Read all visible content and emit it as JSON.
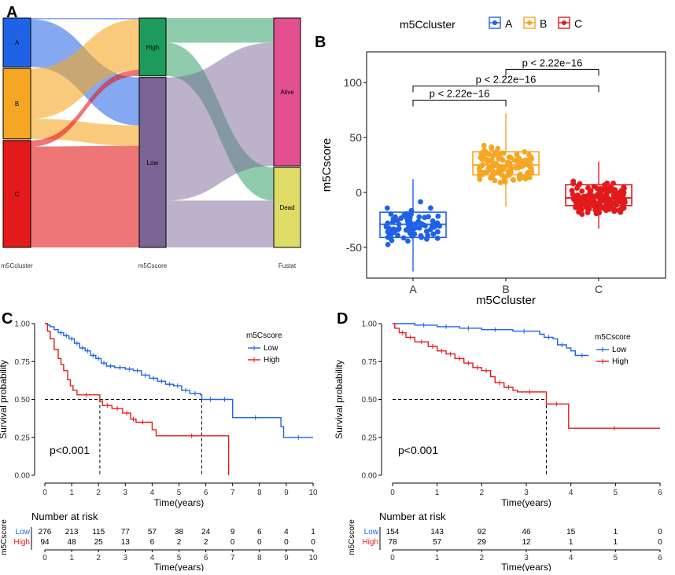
{
  "colors": {
    "A": "#1F62E6",
    "B": "#F5A623",
    "C": "#E31A1C",
    "high_node": "#1E9A5C",
    "low_node": "#7A6596",
    "alive_node": "#E2508F",
    "dead_node": "#DEDB67",
    "low_curve": "#1F62E6",
    "high_curve": "#E31A1C"
  },
  "panels": {
    "A": "A",
    "B": "B",
    "C": "C",
    "D": "D"
  },
  "chart_data": [
    {
      "panel": "A",
      "type": "sankey",
      "axis_labels": [
        "m5Ccluster",
        "m5Cscore",
        "Fustat"
      ],
      "nodes": [
        {
          "id": "A",
          "label": "A",
          "column": 0,
          "value": 80
        },
        {
          "id": "B",
          "label": "B",
          "column": 0,
          "value": 115
        },
        {
          "id": "C",
          "label": "C",
          "column": 0,
          "value": 175
        },
        {
          "id": "High",
          "label": "High",
          "column": 1,
          "value": 94
        },
        {
          "id": "Low",
          "label": "Low",
          "column": 1,
          "value": 276
        },
        {
          "id": "Alive",
          "label": "Alive",
          "column": 2,
          "value": 240
        },
        {
          "id": "Dead",
          "label": "Dead",
          "column": 2,
          "value": 130
        }
      ],
      "links": [
        {
          "source": "A",
          "target": "High",
          "value": 2
        },
        {
          "source": "A",
          "target": "Low",
          "value": 78
        },
        {
          "source": "B",
          "target": "High",
          "value": 82
        },
        {
          "source": "B",
          "target": "Low",
          "value": 33
        },
        {
          "source": "C",
          "target": "High",
          "value": 10
        },
        {
          "source": "C",
          "target": "Low",
          "value": 165
        },
        {
          "source": "High",
          "target": "Alive",
          "value": 40
        },
        {
          "source": "High",
          "target": "Dead",
          "value": 54
        },
        {
          "source": "Low",
          "target": "Alive",
          "value": 200
        },
        {
          "source": "Low",
          "target": "Dead",
          "value": 76
        }
      ]
    },
    {
      "panel": "B",
      "type": "boxplot",
      "xlabel": "m5Ccluster",
      "ylabel": "m5Cscore",
      "legend_title": "m5Ccluster",
      "categories": [
        "A",
        "B",
        "C"
      ],
      "ylim": [
        -78,
        128
      ],
      "yticks": [
        -50,
        0,
        50,
        100
      ],
      "boxes": [
        {
          "name": "A",
          "min": -72,
          "q1": -41,
          "median": -29,
          "q3": -18,
          "max": 12
        },
        {
          "name": "B",
          "min": -13,
          "q1": 16,
          "median": 25,
          "q3": 37,
          "max": 72
        },
        {
          "name": "C",
          "min": -33,
          "q1": -12,
          "median": -5,
          "q3": 7,
          "max": 28
        }
      ],
      "jitter_counts": [
        80,
        115,
        175
      ],
      "comparisons": [
        {
          "from": "A",
          "to": "B",
          "label": "p < 2.22e−16",
          "y": 84
        },
        {
          "from": "A",
          "to": "C",
          "label": "p < 2.22e−16",
          "y": 97
        },
        {
          "from": "B",
          "to": "C",
          "label": "p < 2.22e−16",
          "y": 112
        }
      ]
    },
    {
      "panel": "C",
      "type": "line",
      "subtype": "kaplan-meier",
      "ylabel": "Survival probability",
      "xlabel": "Time(years)",
      "legend_title": "m5Cscore",
      "xlim": [
        0,
        10
      ],
      "ylim": [
        0,
        1
      ],
      "xticks": [
        0,
        1,
        2,
        3,
        4,
        5,
        6,
        7,
        8,
        9,
        10
      ],
      "yticks": [
        "0.00",
        "0.25",
        "0.50",
        "0.75",
        "1.00"
      ],
      "pvalue": "p<0.001",
      "median_survival": {
        "High": 2.05,
        "Low": 5.85
      },
      "series": [
        {
          "name": "Low",
          "points": [
            [
              0,
              1
            ],
            [
              0.1,
              0.99
            ],
            [
              0.2,
              0.98
            ],
            [
              0.35,
              0.96
            ],
            [
              0.5,
              0.94
            ],
            [
              0.7,
              0.92
            ],
            [
              0.9,
              0.9
            ],
            [
              1.1,
              0.87
            ],
            [
              1.3,
              0.84
            ],
            [
              1.5,
              0.82
            ],
            [
              1.7,
              0.79
            ],
            [
              1.9,
              0.77
            ],
            [
              2.1,
              0.74
            ],
            [
              2.3,
              0.72
            ],
            [
              2.6,
              0.71
            ],
            [
              3,
              0.7
            ],
            [
              3.3,
              0.69
            ],
            [
              3.6,
              0.66
            ],
            [
              3.9,
              0.64
            ],
            [
              4.2,
              0.62
            ],
            [
              4.5,
              0.6
            ],
            [
              4.8,
              0.59
            ],
            [
              5.1,
              0.56
            ],
            [
              5.4,
              0.54
            ],
            [
              5.8,
              0.53
            ],
            [
              5.85,
              0.5
            ],
            [
              6.5,
              0.5
            ],
            [
              6.9,
              0.5
            ],
            [
              7,
              0.38
            ],
            [
              8.7,
              0.38
            ],
            [
              8.8,
              0.32
            ],
            [
              8.9,
              0.25
            ],
            [
              10,
              0.25
            ]
          ]
        },
        {
          "name": "High",
          "points": [
            [
              0,
              1
            ],
            [
              0.1,
              0.95
            ],
            [
              0.2,
              0.9
            ],
            [
              0.35,
              0.83
            ],
            [
              0.5,
              0.77
            ],
            [
              0.6,
              0.73
            ],
            [
              0.7,
              0.69
            ],
            [
              0.85,
              0.63
            ],
            [
              0.95,
              0.59
            ],
            [
              1.05,
              0.56
            ],
            [
              1.2,
              0.53
            ],
            [
              1.9,
              0.53
            ],
            [
              2.05,
              0.49
            ],
            [
              2.15,
              0.46
            ],
            [
              2.5,
              0.44
            ],
            [
              2.9,
              0.41
            ],
            [
              3.2,
              0.37
            ],
            [
              3.4,
              0.35
            ],
            [
              3.9,
              0.35
            ],
            [
              4,
              0.3
            ],
            [
              4.15,
              0.26
            ],
            [
              6.8,
              0.26
            ],
            [
              6.85,
              0
            ]
          ]
        }
      ],
      "risk_table": {
        "title": "Number at risk",
        "axis_label": "m5Cscore",
        "xlabel": "Time(years)",
        "rows": [
          {
            "name": "Low",
            "values": [
              "276",
              "213",
              "115",
              "77",
              "57",
              "38",
              "24",
              "9",
              "6",
              "4",
              "1"
            ]
          },
          {
            "name": "High",
            "values": [
              "94",
              "48",
              "25",
              "13",
              "6",
              "2",
              "2",
              "0",
              "0",
              "0",
              "0"
            ]
          }
        ]
      }
    },
    {
      "panel": "D",
      "type": "line",
      "subtype": "kaplan-meier",
      "ylabel": "Survival probability",
      "xlabel": "Time(years)",
      "legend_title": "m5Cscore",
      "xlim": [
        0,
        6
      ],
      "ylim": [
        0,
        1
      ],
      "xticks": [
        0,
        1,
        2,
        3,
        4,
        5,
        6
      ],
      "yticks": [
        "0.00",
        "0.25",
        "0.50",
        "0.75",
        "1.00"
      ],
      "pvalue": "p<0.001",
      "median_survival": {
        "High": 3.45,
        "Low": null
      },
      "series": [
        {
          "name": "Low",
          "points": [
            [
              0,
              1
            ],
            [
              0.4,
              1
            ],
            [
              0.5,
              0.99
            ],
            [
              0.9,
              0.99
            ],
            [
              1,
              0.98
            ],
            [
              1.4,
              0.98
            ],
            [
              1.5,
              0.97
            ],
            [
              1.9,
              0.97
            ],
            [
              2,
              0.96
            ],
            [
              2.6,
              0.96
            ],
            [
              2.7,
              0.95
            ],
            [
              3.2,
              0.95
            ],
            [
              3.3,
              0.93
            ],
            [
              3.4,
              0.91
            ],
            [
              3.6,
              0.9
            ],
            [
              3.7,
              0.86
            ],
            [
              3.9,
              0.84
            ],
            [
              4,
              0.82
            ],
            [
              4.1,
              0.79
            ],
            [
              4.4,
              0.79
            ]
          ]
        },
        {
          "name": "High",
          "points": [
            [
              0,
              1
            ],
            [
              0.05,
              0.97
            ],
            [
              0.15,
              0.94
            ],
            [
              0.3,
              0.91
            ],
            [
              0.5,
              0.88
            ],
            [
              0.8,
              0.85
            ],
            [
              1,
              0.82
            ],
            [
              1.2,
              0.8
            ],
            [
              1.4,
              0.77
            ],
            [
              1.6,
              0.74
            ],
            [
              1.8,
              0.71
            ],
            [
              2,
              0.69
            ],
            [
              2.2,
              0.65
            ],
            [
              2.3,
              0.61
            ],
            [
              2.5,
              0.58
            ],
            [
              2.7,
              0.56
            ],
            [
              2.8,
              0.55
            ],
            [
              3.35,
              0.55
            ],
            [
              3.45,
              0.47
            ],
            [
              3.9,
              0.47
            ],
            [
              3.95,
              0.31
            ],
            [
              6,
              0.31
            ]
          ]
        }
      ],
      "risk_table": {
        "title": "Number at risk",
        "axis_label": "m5Cscore",
        "xlabel": "Time(years)",
        "rows": [
          {
            "name": "Low",
            "values": [
              "154",
              "143",
              "92",
              "46",
              "15",
              "1",
              "0"
            ]
          },
          {
            "name": "High",
            "values": [
              "78",
              "57",
              "29",
              "12",
              "1",
              "1",
              "0"
            ]
          }
        ]
      }
    }
  ]
}
